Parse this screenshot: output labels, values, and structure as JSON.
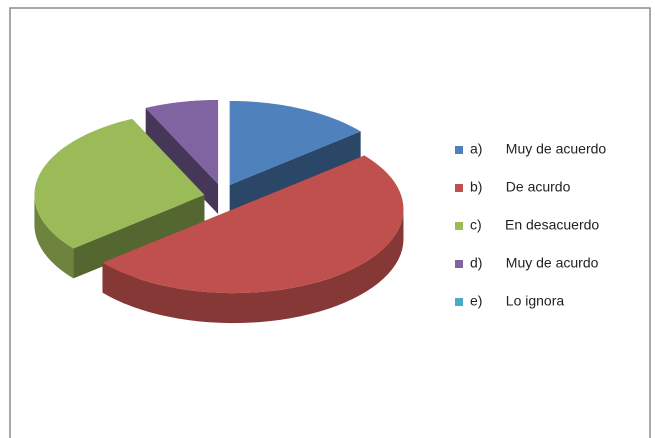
{
  "chart_data": {
    "type": "pie3d",
    "categories": [
      "a)      Muy de acuerdo",
      "b)      De acurdo",
      "c)      En desacuerdo",
      "d)      Muy de acurdo",
      "e)      Lo ignora"
    ],
    "values": [
      14,
      50,
      29,
      7,
      0
    ],
    "colors": [
      "#4f81bd",
      "#c0504d",
      "#9bbb59",
      "#8064a2",
      "#4bacc6"
    ],
    "legend": "right"
  }
}
